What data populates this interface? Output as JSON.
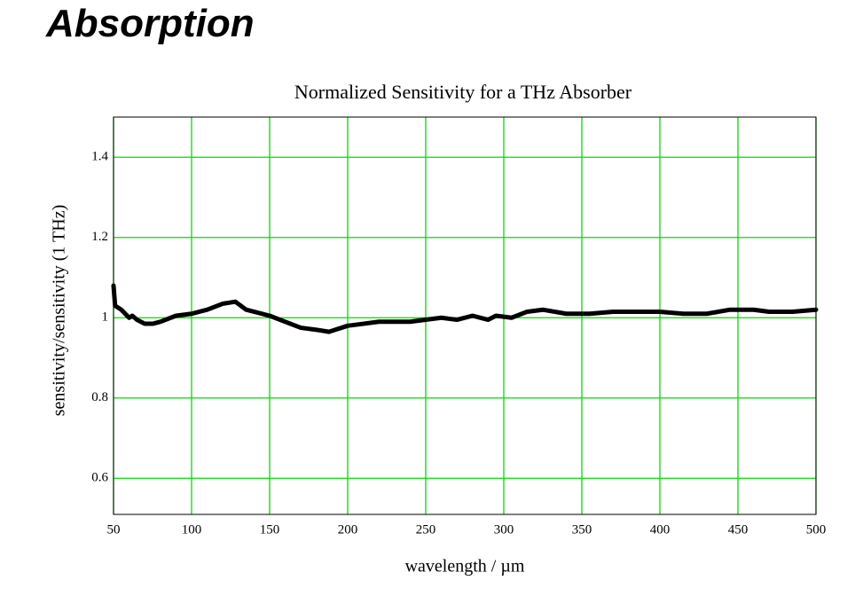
{
  "page_title": "Absorption",
  "chart_data": {
    "type": "line",
    "title": "Normalized Sensitivity for a THz Absorber",
    "x_label": "wavelength / µm",
    "y_label": "sensitivity/sensitivity (1 THz)",
    "x": [
      50,
      51,
      55,
      60,
      62,
      65,
      70,
      75,
      80,
      90,
      100,
      110,
      120,
      128,
      135,
      150,
      160,
      170,
      180,
      188,
      200,
      210,
      220,
      230,
      240,
      250,
      260,
      270,
      280,
      290,
      295,
      305,
      315,
      325,
      340,
      355,
      370,
      385,
      400,
      415,
      430,
      445,
      460,
      470,
      485,
      500
    ],
    "series": [
      {
        "name": "sensitivity",
        "color": "#000000",
        "values": [
          1.08,
          1.03,
          1.02,
          1.0,
          1.005,
          0.995,
          0.985,
          0.985,
          0.99,
          1.005,
          1.01,
          1.02,
          1.035,
          1.04,
          1.02,
          1.005,
          0.99,
          0.975,
          0.97,
          0.965,
          0.98,
          0.985,
          0.99,
          0.99,
          0.99,
          0.995,
          1.0,
          0.995,
          1.005,
          0.995,
          1.005,
          1.0,
          1.015,
          1.02,
          1.01,
          1.01,
          1.015,
          1.015,
          1.015,
          1.01,
          1.01,
          1.02,
          1.02,
          1.015,
          1.015,
          1.02
        ]
      }
    ],
    "xlim": [
      50,
      500
    ],
    "xticks": [
      50,
      100,
      150,
      200,
      250,
      300,
      350,
      400,
      450,
      500
    ],
    "ylim": [
      0.51,
      1.5
    ],
    "yticks": [
      0.6,
      0.8,
      1,
      1.2,
      1.4
    ],
    "grid": true,
    "grid_color": "#00dd00"
  }
}
